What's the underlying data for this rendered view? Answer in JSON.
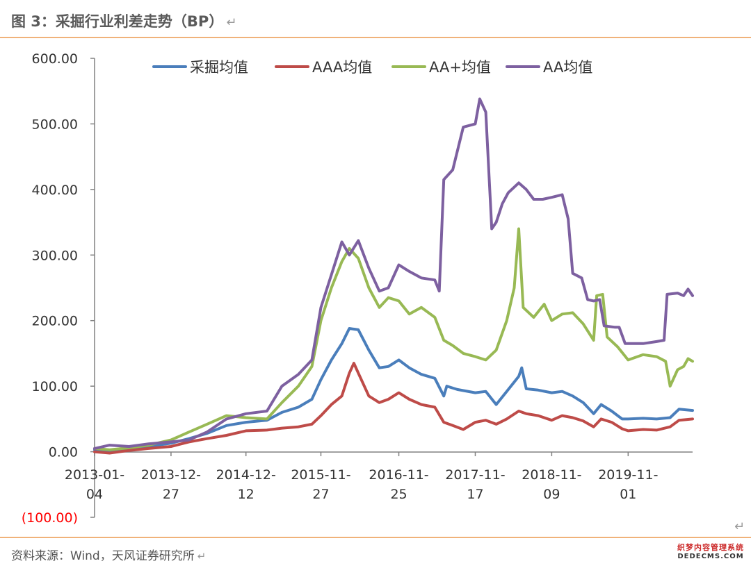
{
  "figure_title": "图 3：采掘行业利差走势（BP）",
  "return_mark": "↵",
  "source_text": "资料来源：Wind，天风证券研究所",
  "watermark": {
    "line1": "织梦内容管理系统",
    "line2": "DEDECMS.COM"
  },
  "colors": {
    "series": [
      "#4a7ebb",
      "#be4b48",
      "#98b954",
      "#7d60a0"
    ],
    "axis": "#808080",
    "tick_text": "#333333",
    "negative_tick": "#ff0000",
    "rule": "#f0b27a"
  },
  "chart_data": {
    "type": "line",
    "title": "",
    "xlabel": "",
    "ylabel": "",
    "ylim": [
      -100,
      600
    ],
    "grid": false,
    "legend_position": "top",
    "y_ticks": [
      "600.00",
      "500.00",
      "400.00",
      "300.00",
      "200.00",
      "100.00",
      "0.00",
      "(100.00)"
    ],
    "x_ticks": [
      {
        "date": "2013-01-04",
        "line1": "2013-01-",
        "line2": "04"
      },
      {
        "date": "2013-12-27",
        "line1": "2013-12-",
        "line2": "27"
      },
      {
        "date": "2014-12-12",
        "line1": "2014-12-",
        "line2": "12"
      },
      {
        "date": "2015-11-27",
        "line1": "2015-11-",
        "line2": "27"
      },
      {
        "date": "2016-11-25",
        "line1": "2016-11-",
        "line2": "25"
      },
      {
        "date": "2017-11-17",
        "line1": "2017-11-",
        "line2": "17"
      },
      {
        "date": "2018-11-09",
        "line1": "2018-11-",
        "line2": "09"
      },
      {
        "date": "2019-11-01",
        "line1": "2019-11-",
        "line2": "01"
      }
    ],
    "x_range": [
      "2013-01-04",
      "2020-08-28"
    ],
    "series": [
      {
        "name": "采掘均值",
        "points": [
          [
            "2013-01-04",
            3
          ],
          [
            "2013-03-15",
            2
          ],
          [
            "2013-06-14",
            5
          ],
          [
            "2013-09-13",
            8
          ],
          [
            "2013-12-27",
            13
          ],
          [
            "2014-03-21",
            20
          ],
          [
            "2014-06-13",
            28
          ],
          [
            "2014-09-12",
            40
          ],
          [
            "2014-12-12",
            45
          ],
          [
            "2015-03-20",
            48
          ],
          [
            "2015-05-29",
            60
          ],
          [
            "2015-08-14",
            68
          ],
          [
            "2015-10-16",
            80
          ],
          [
            "2015-11-27",
            110
          ],
          [
            "2016-01-15",
            140
          ],
          [
            "2016-03-04",
            165
          ],
          [
            "2016-04-08",
            188
          ],
          [
            "2016-05-20",
            186
          ],
          [
            "2016-07-08",
            155
          ],
          [
            "2016-08-26",
            128
          ],
          [
            "2016-10-07",
            130
          ],
          [
            "2016-11-25",
            140
          ],
          [
            "2017-01-13",
            128
          ],
          [
            "2017-03-10",
            118
          ],
          [
            "2017-05-12",
            112
          ],
          [
            "2017-06-23",
            85
          ],
          [
            "2017-07-07",
            100
          ],
          [
            "2017-08-25",
            95
          ],
          [
            "2017-11-17",
            90
          ],
          [
            "2018-01-05",
            92
          ],
          [
            "2018-02-23",
            72
          ],
          [
            "2018-04-13",
            92
          ],
          [
            "2018-06-08",
            115
          ],
          [
            "2018-06-22",
            128
          ],
          [
            "2018-07-13",
            96
          ],
          [
            "2018-09-07",
            94
          ],
          [
            "2018-11-09",
            90
          ],
          [
            "2018-12-28",
            92
          ],
          [
            "2019-02-15",
            85
          ],
          [
            "2019-04-05",
            75
          ],
          [
            "2019-05-24",
            58
          ],
          [
            "2019-06-28",
            72
          ],
          [
            "2019-08-16",
            62
          ],
          [
            "2019-10-04",
            50
          ],
          [
            "2019-11-01",
            50
          ],
          [
            "2020-01-10",
            51
          ],
          [
            "2020-03-13",
            50
          ],
          [
            "2020-05-15",
            52
          ],
          [
            "2020-06-26",
            65
          ],
          [
            "2020-08-28",
            63
          ]
        ]
      },
      {
        "name": "AAA均值",
        "points": [
          [
            "2013-01-04",
            0
          ],
          [
            "2013-03-15",
            -2
          ],
          [
            "2013-06-14",
            2
          ],
          [
            "2013-09-13",
            5
          ],
          [
            "2013-12-27",
            8
          ],
          [
            "2014-03-21",
            15
          ],
          [
            "2014-06-13",
            20
          ],
          [
            "2014-09-12",
            25
          ],
          [
            "2014-12-12",
            32
          ],
          [
            "2015-03-20",
            33
          ],
          [
            "2015-05-29",
            36
          ],
          [
            "2015-08-14",
            38
          ],
          [
            "2015-10-16",
            42
          ],
          [
            "2015-11-27",
            55
          ],
          [
            "2016-01-15",
            72
          ],
          [
            "2016-03-04",
            85
          ],
          [
            "2016-04-08",
            120
          ],
          [
            "2016-04-29",
            135
          ],
          [
            "2016-05-20",
            120
          ],
          [
            "2016-07-08",
            85
          ],
          [
            "2016-08-26",
            75
          ],
          [
            "2016-10-07",
            80
          ],
          [
            "2016-11-25",
            90
          ],
          [
            "2017-01-13",
            80
          ],
          [
            "2017-03-10",
            72
          ],
          [
            "2017-05-12",
            68
          ],
          [
            "2017-06-23",
            45
          ],
          [
            "2017-08-04",
            40
          ],
          [
            "2017-09-22",
            34
          ],
          [
            "2017-11-17",
            45
          ],
          [
            "2018-01-05",
            48
          ],
          [
            "2018-02-23",
            42
          ],
          [
            "2018-04-13",
            50
          ],
          [
            "2018-06-08",
            62
          ],
          [
            "2018-07-13",
            58
          ],
          [
            "2018-09-07",
            55
          ],
          [
            "2018-11-09",
            48
          ],
          [
            "2018-12-28",
            55
          ],
          [
            "2019-02-15",
            52
          ],
          [
            "2019-04-05",
            47
          ],
          [
            "2019-05-24",
            38
          ],
          [
            "2019-06-28",
            50
          ],
          [
            "2019-08-16",
            45
          ],
          [
            "2019-10-04",
            35
          ],
          [
            "2019-11-01",
            32
          ],
          [
            "2020-01-10",
            34
          ],
          [
            "2020-03-13",
            33
          ],
          [
            "2020-05-15",
            38
          ],
          [
            "2020-06-26",
            48
          ],
          [
            "2020-08-28",
            50
          ]
        ]
      },
      {
        "name": "AA+均值",
        "points": [
          [
            "2013-01-04",
            5
          ],
          [
            "2013-03-15",
            3
          ],
          [
            "2013-06-14",
            6
          ],
          [
            "2013-09-13",
            10
          ],
          [
            "2013-12-27",
            18
          ],
          [
            "2014-03-21",
            30
          ],
          [
            "2014-06-13",
            42
          ],
          [
            "2014-09-12",
            55
          ],
          [
            "2014-12-12",
            52
          ],
          [
            "2015-03-20",
            50
          ],
          [
            "2015-05-29",
            75
          ],
          [
            "2015-08-14",
            100
          ],
          [
            "2015-10-16",
            130
          ],
          [
            "2015-11-27",
            200
          ],
          [
            "2016-01-15",
            250
          ],
          [
            "2016-03-04",
            290
          ],
          [
            "2016-04-08",
            310
          ],
          [
            "2016-05-20",
            295
          ],
          [
            "2016-07-08",
            250
          ],
          [
            "2016-08-26",
            220
          ],
          [
            "2016-10-07",
            235
          ],
          [
            "2016-11-25",
            230
          ],
          [
            "2017-01-13",
            210
          ],
          [
            "2017-03-10",
            220
          ],
          [
            "2017-05-12",
            205
          ],
          [
            "2017-06-23",
            170
          ],
          [
            "2017-08-04",
            162
          ],
          [
            "2017-09-22",
            150
          ],
          [
            "2017-11-17",
            145
          ],
          [
            "2018-01-05",
            140
          ],
          [
            "2018-02-23",
            155
          ],
          [
            "2018-04-13",
            200
          ],
          [
            "2018-05-18",
            250
          ],
          [
            "2018-06-08",
            340
          ],
          [
            "2018-06-29",
            220
          ],
          [
            "2018-08-17",
            205
          ],
          [
            "2018-10-05",
            225
          ],
          [
            "2018-11-09",
            200
          ],
          [
            "2018-12-28",
            210
          ],
          [
            "2019-02-15",
            212
          ],
          [
            "2019-04-05",
            195
          ],
          [
            "2019-05-24",
            170
          ],
          [
            "2019-06-07",
            238
          ],
          [
            "2019-07-05",
            240
          ],
          [
            "2019-07-26",
            175
          ],
          [
            "2019-09-13",
            160
          ],
          [
            "2019-11-01",
            140
          ],
          [
            "2020-01-10",
            148
          ],
          [
            "2020-03-13",
            145
          ],
          [
            "2020-04-24",
            138
          ],
          [
            "2020-05-15",
            100
          ],
          [
            "2020-06-19",
            125
          ],
          [
            "2020-07-17",
            130
          ],
          [
            "2020-08-07",
            142
          ],
          [
            "2020-08-28",
            138
          ]
        ]
      },
      {
        "name": "AA均值",
        "points": [
          [
            "2013-01-04",
            5
          ],
          [
            "2013-03-15",
            10
          ],
          [
            "2013-06-14",
            8
          ],
          [
            "2013-09-13",
            12
          ],
          [
            "2013-12-27",
            15
          ],
          [
            "2014-03-21",
            18
          ],
          [
            "2014-06-13",
            30
          ],
          [
            "2014-09-12",
            50
          ],
          [
            "2014-12-12",
            58
          ],
          [
            "2015-03-20",
            62
          ],
          [
            "2015-05-29",
            100
          ],
          [
            "2015-08-14",
            118
          ],
          [
            "2015-10-16",
            140
          ],
          [
            "2015-11-27",
            220
          ],
          [
            "2016-01-15",
            270
          ],
          [
            "2016-03-04",
            320
          ],
          [
            "2016-04-08",
            300
          ],
          [
            "2016-05-20",
            322
          ],
          [
            "2016-07-08",
            280
          ],
          [
            "2016-08-26",
            245
          ],
          [
            "2016-10-07",
            250
          ],
          [
            "2016-11-25",
            285
          ],
          [
            "2017-01-13",
            275
          ],
          [
            "2017-03-10",
            265
          ],
          [
            "2017-05-12",
            262
          ],
          [
            "2017-06-02",
            245
          ],
          [
            "2017-06-23",
            415
          ],
          [
            "2017-08-04",
            430
          ],
          [
            "2017-09-22",
            495
          ],
          [
            "2017-11-17",
            500
          ],
          [
            "2017-12-08",
            538
          ],
          [
            "2018-01-05",
            518
          ],
          [
            "2018-02-02",
            340
          ],
          [
            "2018-02-23",
            350
          ],
          [
            "2018-03-23",
            378
          ],
          [
            "2018-04-20",
            395
          ],
          [
            "2018-06-08",
            410
          ],
          [
            "2018-07-13",
            400
          ],
          [
            "2018-08-17",
            385
          ],
          [
            "2018-09-28",
            385
          ],
          [
            "2018-11-09",
            388
          ],
          [
            "2018-12-28",
            392
          ],
          [
            "2019-01-25",
            355
          ],
          [
            "2019-02-15",
            272
          ],
          [
            "2019-03-29",
            265
          ],
          [
            "2019-04-26",
            232
          ],
          [
            "2019-05-24",
            230
          ],
          [
            "2019-06-21",
            232
          ],
          [
            "2019-07-12",
            192
          ],
          [
            "2019-08-30",
            190
          ],
          [
            "2019-09-20",
            190
          ],
          [
            "2019-10-18",
            165
          ],
          [
            "2020-01-10",
            165
          ],
          [
            "2020-03-13",
            168
          ],
          [
            "2020-04-17",
            170
          ],
          [
            "2020-05-01",
            240
          ],
          [
            "2020-06-19",
            242
          ],
          [
            "2020-07-17",
            238
          ],
          [
            "2020-08-07",
            248
          ],
          [
            "2020-08-28",
            238
          ]
        ]
      }
    ]
  }
}
